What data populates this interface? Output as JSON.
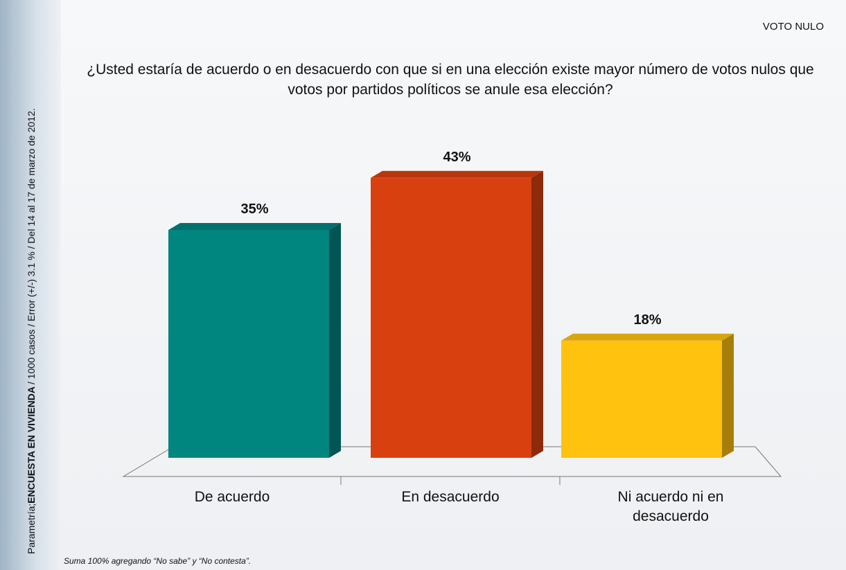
{
  "chart_data": {
    "type": "bar3d",
    "corner_label": "VOTO NULO",
    "title": "¿Usted estaría de acuerdo o en desacuerdo con que si en una elección existe mayor número de votos nulos que votos por partidos políticos se anule esa elección?",
    "categories": [
      "De acuerdo",
      "En desacuerdo",
      "Ni acuerdo ni en desacuerdo"
    ],
    "values": [
      35,
      43,
      18
    ],
    "value_labels": [
      "35%",
      "43%",
      "18%"
    ],
    "colors": [
      "#00857f",
      "#d9400f",
      "#ffc20e"
    ],
    "source": {
      "prefix": "Parametría;",
      "bold": "ENCUESTA EN VIVIENDA",
      "rest": "/ 1000 casos / Error (+/-) 3.1 % / Del 14 al 17 de marzo de 2012."
    },
    "footnote": "Suma 100%  agregando “No sabe” y “No contesta”."
  }
}
